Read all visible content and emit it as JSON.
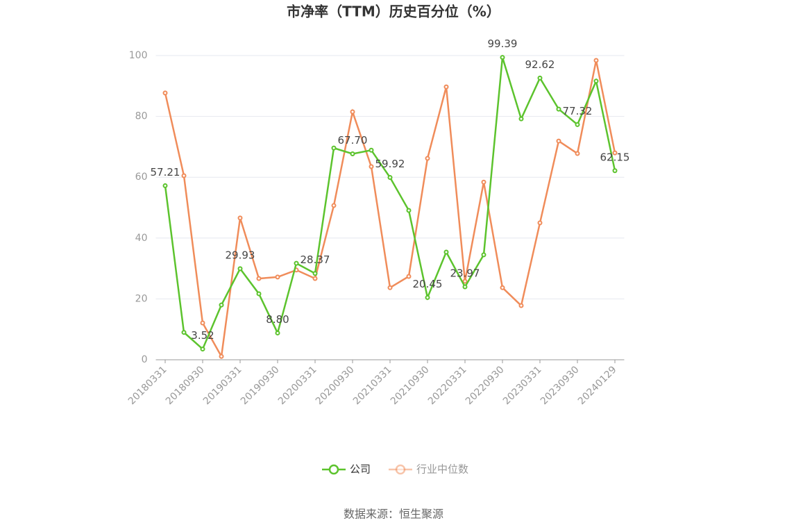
{
  "chart_data": {
    "type": "line",
    "title": "市净率（TTM）历史百分位（%）",
    "categories": [
      "20180331",
      null,
      "20180930",
      null,
      "20190331",
      null,
      "20190930",
      null,
      "20200331",
      null,
      "20200930",
      null,
      "20210331",
      null,
      "20210930",
      null,
      "20220331",
      null,
      "20220930",
      null,
      "20230331",
      null,
      "20230930",
      null,
      "20240129"
    ],
    "series": [
      {
        "name": "公司",
        "color": "#5cc32d",
        "values": [
          57.21,
          9.0,
          3.52,
          18.0,
          29.93,
          21.7,
          8.8,
          31.7,
          28.37,
          69.6,
          67.7,
          68.9,
          59.92,
          49.1,
          20.45,
          35.4,
          23.97,
          34.5,
          99.39,
          79.2,
          92.62,
          82.4,
          77.32,
          91.6,
          62.15
        ],
        "value_labels": [
          "57.21",
          null,
          "3.52",
          null,
          "29.93",
          null,
          "8.80",
          null,
          "28.37",
          null,
          "67.70",
          null,
          "59.92",
          null,
          "20.45",
          null,
          "23.97",
          null,
          "99.39",
          null,
          "92.62",
          null,
          "77.32",
          null,
          "62.15"
        ]
      },
      {
        "name": "行业中位数",
        "color": "#f08c5a",
        "values": [
          87.7,
          60.5,
          12.1,
          1.1,
          46.6,
          26.7,
          27.2,
          29.5,
          26.7,
          50.7,
          81.5,
          63.5,
          23.7,
          27.4,
          66.2,
          89.7,
          25.8,
          58.4,
          23.7,
          17.8,
          45.0,
          71.9,
          67.8,
          98.4,
          68.0
        ]
      }
    ],
    "ylim": [
      0,
      100
    ],
    "yticks": [
      0,
      20,
      40,
      60,
      80,
      100
    ],
    "grid": true,
    "source": "数据来源：恒生聚源"
  }
}
